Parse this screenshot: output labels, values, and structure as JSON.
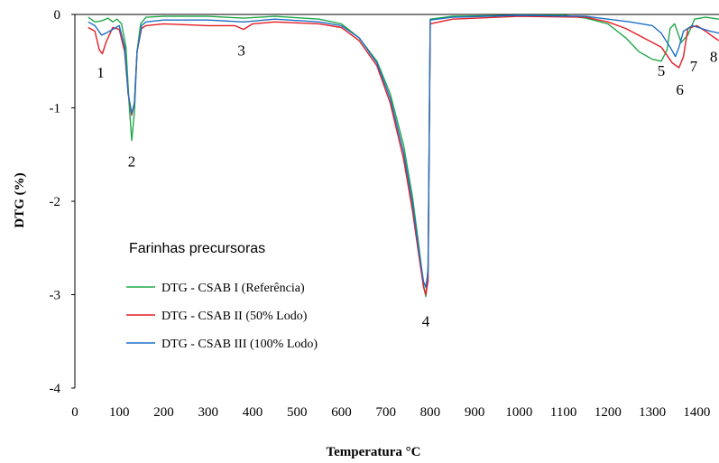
{
  "chart_data": {
    "type": "line",
    "title": "",
    "xlabel": "Temperatura °C",
    "ylabel": "DTG (%)",
    "xlim": [
      0,
      1450
    ],
    "ylim": [
      -4,
      0
    ],
    "x_ticks": [
      "0",
      "100",
      "200",
      "300",
      "400",
      "500",
      "600",
      "700",
      "800",
      "900",
      "1000",
      "1100",
      "1200",
      "1300",
      "1400"
    ],
    "y_ticks": [
      "0",
      "-1",
      "-2",
      "-3",
      "-4"
    ],
    "legend_title": "Farinhas precursoras",
    "legend_position": "center-left",
    "series": [
      {
        "name": "DTG - CSAB I (Referência)",
        "color": "#22a84a",
        "points": [
          [
            30,
            -0.03
          ],
          [
            45,
            -0.08
          ],
          [
            60,
            -0.07
          ],
          [
            75,
            -0.04
          ],
          [
            85,
            -0.08
          ],
          [
            95,
            -0.05
          ],
          [
            105,
            -0.1
          ],
          [
            115,
            -0.35
          ],
          [
            122,
            -0.95
          ],
          [
            128,
            -1.35
          ],
          [
            134,
            -1.05
          ],
          [
            140,
            -0.4
          ],
          [
            148,
            -0.1
          ],
          [
            160,
            -0.03
          ],
          [
            200,
            -0.02
          ],
          [
            300,
            -0.02
          ],
          [
            380,
            -0.04
          ],
          [
            450,
            -0.02
          ],
          [
            550,
            -0.05
          ],
          [
            600,
            -0.1
          ],
          [
            640,
            -0.25
          ],
          [
            680,
            -0.5
          ],
          [
            710,
            -0.85
          ],
          [
            740,
            -1.4
          ],
          [
            760,
            -1.95
          ],
          [
            775,
            -2.5
          ],
          [
            785,
            -2.9
          ],
          [
            790,
            -3.02
          ],
          [
            795,
            -2.7
          ],
          [
            800,
            -0.05
          ],
          [
            850,
            -0.02
          ],
          [
            1000,
            -0.01
          ],
          [
            1100,
            -0.01
          ],
          [
            1150,
            -0.04
          ],
          [
            1200,
            -0.1
          ],
          [
            1240,
            -0.25
          ],
          [
            1270,
            -0.4
          ],
          [
            1300,
            -0.48
          ],
          [
            1320,
            -0.5
          ],
          [
            1333,
            -0.38
          ],
          [
            1340,
            -0.15
          ],
          [
            1350,
            -0.1
          ],
          [
            1365,
            -0.3
          ],
          [
            1380,
            -0.22
          ],
          [
            1395,
            -0.05
          ],
          [
            1420,
            -0.03
          ],
          [
            1450,
            -0.05
          ]
        ]
      },
      {
        "name": "DTG - CSAB II (50% Lodo)",
        "color": "#e41e26",
        "points": [
          [
            30,
            -0.14
          ],
          [
            45,
            -0.18
          ],
          [
            55,
            -0.38
          ],
          [
            62,
            -0.42
          ],
          [
            70,
            -0.3
          ],
          [
            85,
            -0.14
          ],
          [
            100,
            -0.16
          ],
          [
            112,
            -0.4
          ],
          [
            120,
            -0.85
          ],
          [
            128,
            -1.08
          ],
          [
            134,
            -0.95
          ],
          [
            140,
            -0.4
          ],
          [
            150,
            -0.15
          ],
          [
            160,
            -0.12
          ],
          [
            200,
            -0.1
          ],
          [
            300,
            -0.12
          ],
          [
            360,
            -0.12
          ],
          [
            380,
            -0.16
          ],
          [
            400,
            -0.1
          ],
          [
            450,
            -0.08
          ],
          [
            550,
            -0.1
          ],
          [
            600,
            -0.14
          ],
          [
            640,
            -0.28
          ],
          [
            680,
            -0.55
          ],
          [
            710,
            -0.95
          ],
          [
            740,
            -1.55
          ],
          [
            760,
            -2.1
          ],
          [
            775,
            -2.6
          ],
          [
            785,
            -2.92
          ],
          [
            790,
            -3.0
          ],
          [
            795,
            -2.85
          ],
          [
            800,
            -0.1
          ],
          [
            850,
            -0.05
          ],
          [
            1000,
            -0.02
          ],
          [
            1150,
            -0.03
          ],
          [
            1200,
            -0.08
          ],
          [
            1240,
            -0.15
          ],
          [
            1280,
            -0.25
          ],
          [
            1320,
            -0.35
          ],
          [
            1345,
            -0.52
          ],
          [
            1360,
            -0.57
          ],
          [
            1370,
            -0.45
          ],
          [
            1380,
            -0.15
          ],
          [
            1400,
            -0.12
          ],
          [
            1420,
            -0.18
          ],
          [
            1440,
            -0.25
          ],
          [
            1450,
            -0.28
          ]
        ]
      },
      {
        "name": "DTG - CSAB III (100% Lodo)",
        "color": "#1f6fc5",
        "points": [
          [
            30,
            -0.08
          ],
          [
            45,
            -0.12
          ],
          [
            60,
            -0.22
          ],
          [
            70,
            -0.2
          ],
          [
            85,
            -0.16
          ],
          [
            100,
            -0.12
          ],
          [
            112,
            -0.35
          ],
          [
            120,
            -0.85
          ],
          [
            128,
            -1.06
          ],
          [
            134,
            -0.95
          ],
          [
            140,
            -0.4
          ],
          [
            150,
            -0.12
          ],
          [
            160,
            -0.08
          ],
          [
            200,
            -0.06
          ],
          [
            300,
            -0.06
          ],
          [
            380,
            -0.08
          ],
          [
            450,
            -0.05
          ],
          [
            550,
            -0.08
          ],
          [
            600,
            -0.12
          ],
          [
            640,
            -0.25
          ],
          [
            680,
            -0.52
          ],
          [
            710,
            -0.9
          ],
          [
            740,
            -1.48
          ],
          [
            760,
            -2.02
          ],
          [
            775,
            -2.55
          ],
          [
            785,
            -2.86
          ],
          [
            790,
            -2.92
          ],
          [
            795,
            -2.75
          ],
          [
            800,
            -0.06
          ],
          [
            850,
            -0.03
          ],
          [
            1000,
            -0.01
          ],
          [
            1150,
            -0.02
          ],
          [
            1200,
            -0.05
          ],
          [
            1250,
            -0.08
          ],
          [
            1300,
            -0.12
          ],
          [
            1320,
            -0.2
          ],
          [
            1340,
            -0.35
          ],
          [
            1352,
            -0.45
          ],
          [
            1360,
            -0.35
          ],
          [
            1370,
            -0.18
          ],
          [
            1390,
            -0.12
          ],
          [
            1410,
            -0.15
          ],
          [
            1430,
            -0.18
          ],
          [
            1450,
            -0.2
          ]
        ]
      }
    ],
    "annotations": [
      {
        "text": "1",
        "x": 58,
        "y": -0.62
      },
      {
        "text": "2",
        "x": 128,
        "y": -1.57
      },
      {
        "text": "3",
        "x": 375,
        "y": -0.38
      },
      {
        "text": "4",
        "x": 790,
        "y": -3.28
      },
      {
        "text": "5",
        "x": 1320,
        "y": -0.6
      },
      {
        "text": "6",
        "x": 1362,
        "y": -0.8
      },
      {
        "text": "7",
        "x": 1393,
        "y": -0.55
      },
      {
        "text": "8",
        "x": 1438,
        "y": -0.45
      }
    ]
  }
}
